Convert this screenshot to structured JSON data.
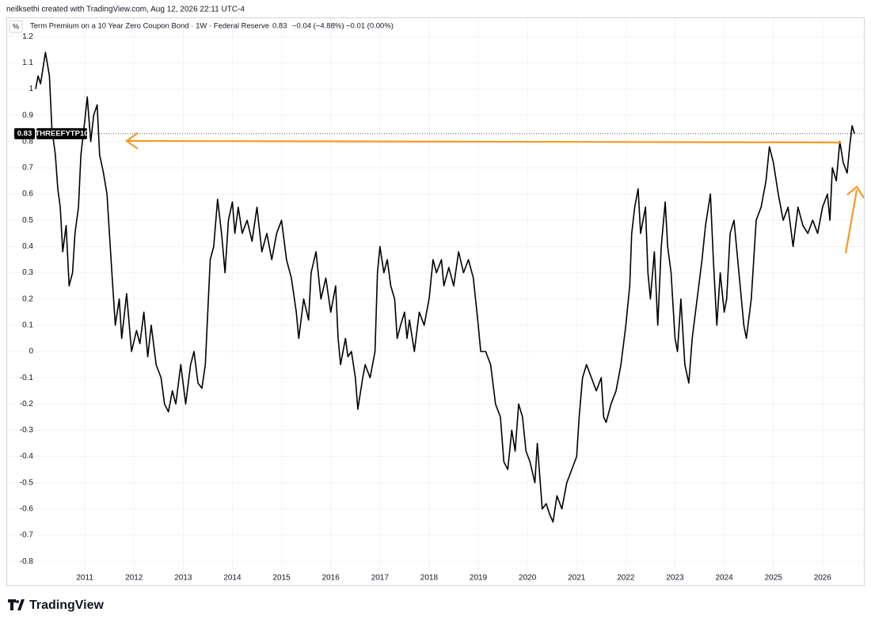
{
  "header": "neilksethi created with TradingView.com, Aug 12, 2026 22:11 UTC-4",
  "logo": "TradingView",
  "chart_data": {
    "type": "line",
    "unit_label": "%",
    "legend": {
      "title": "Term Premium on a 10 Year Zero Coupon Bond · 1W · Federal Reserve",
      "last": 0.83,
      "change": "−0.04 (−4.88%)",
      "change2": "−0.01 (0.00%)"
    },
    "xlim": [
      2009.42,
      2026.84
    ],
    "ylim": [
      -0.89,
      1.27
    ],
    "xticks": [
      2011,
      2012,
      2013,
      2014,
      2015,
      2016,
      2017,
      2018,
      2019,
      2020,
      2021,
      2022,
      2023,
      2024,
      2025,
      2026
    ],
    "yticks": [
      1.2,
      1.1,
      1,
      0.9,
      0.8,
      0.7,
      0.6,
      0.5,
      0.4,
      0.3,
      0.2,
      0.1,
      0,
      -0.1,
      -0.2,
      -0.3,
      -0.4,
      -0.5,
      -0.6,
      -0.7,
      -0.8
    ],
    "grid": true,
    "series": [
      {
        "name": "THREEFYTP10",
        "color": "#000000",
        "x": [
          2010.0,
          2010.05,
          2010.1,
          2010.15,
          2010.2,
          2010.28,
          2010.33,
          2010.4,
          2010.45,
          2010.5,
          2010.55,
          2010.62,
          2010.68,
          2010.75,
          2010.8,
          2010.87,
          2010.92,
          2011.0,
          2011.05,
          2011.12,
          2011.18,
          2011.25,
          2011.3,
          2011.38,
          2011.45,
          2011.55,
          2011.62,
          2011.7,
          2011.75,
          2011.85,
          2011.95,
          2012.05,
          2012.12,
          2012.2,
          2012.28,
          2012.35,
          2012.45,
          2012.55,
          2012.62,
          2012.7,
          2012.78,
          2012.85,
          2012.95,
          2013.05,
          2013.15,
          2013.22,
          2013.3,
          2013.38,
          2013.45,
          2013.5,
          2013.55,
          2013.62,
          2013.7,
          2013.78,
          2013.85,
          2013.92,
          2014.0,
          2014.05,
          2014.12,
          2014.2,
          2014.3,
          2014.4,
          2014.5,
          2014.6,
          2014.7,
          2014.8,
          2014.9,
          2015.0,
          2015.1,
          2015.2,
          2015.3,
          2015.35,
          2015.45,
          2015.55,
          2015.6,
          2015.7,
          2015.8,
          2015.9,
          2016.0,
          2016.1,
          2016.15,
          2016.2,
          2016.3,
          2016.35,
          2016.42,
          2016.5,
          2016.55,
          2016.65,
          2016.7,
          2016.8,
          2016.9,
          2016.95,
          2017.0,
          2017.08,
          2017.15,
          2017.22,
          2017.3,
          2017.35,
          2017.42,
          2017.5,
          2017.55,
          2017.6,
          2017.7,
          2017.8,
          2017.9,
          2018.0,
          2018.08,
          2018.15,
          2018.25,
          2018.3,
          2018.4,
          2018.5,
          2018.6,
          2018.7,
          2018.8,
          2018.9,
          2019.0,
          2019.05,
          2019.15,
          2019.25,
          2019.35,
          2019.45,
          2019.52,
          2019.6,
          2019.68,
          2019.75,
          2019.82,
          2019.9,
          2019.97,
          2020.05,
          2020.15,
          2020.2,
          2020.3,
          2020.38,
          2020.45,
          2020.52,
          2020.6,
          2020.7,
          2020.8,
          2020.9,
          2021.0,
          2021.05,
          2021.12,
          2021.2,
          2021.3,
          2021.4,
          2021.5,
          2021.55,
          2021.6,
          2021.7,
          2021.8,
          2021.9,
          2022.0,
          2022.08,
          2022.12,
          2022.18,
          2022.25,
          2022.3,
          2022.4,
          2022.45,
          2022.5,
          2022.58,
          2022.65,
          2022.72,
          2022.8,
          2022.85,
          2022.92,
          2023.0,
          2023.05,
          2023.12,
          2023.2,
          2023.28,
          2023.35,
          2023.45,
          2023.55,
          2023.62,
          2023.72,
          2023.78,
          2023.85,
          2023.92,
          2024.0,
          2024.05,
          2024.12,
          2024.2,
          2024.3,
          2024.4,
          2024.45,
          2024.55,
          2024.65,
          2024.75,
          2024.85,
          2024.92,
          2025.0,
          2025.1,
          2025.2,
          2025.3,
          2025.4,
          2025.5,
          2025.6,
          2025.7,
          2025.8,
          2025.9,
          2026.0,
          2026.1,
          2026.15,
          2026.2,
          2026.28,
          2026.35,
          2026.42,
          2026.5,
          2026.55,
          2026.6,
          2026.65
        ],
        "values": [
          1.0,
          1.05,
          1.02,
          1.08,
          1.14,
          1.05,
          0.85,
          0.75,
          0.62,
          0.55,
          0.38,
          0.48,
          0.25,
          0.3,
          0.45,
          0.55,
          0.75,
          0.88,
          0.97,
          0.8,
          0.9,
          0.94,
          0.75,
          0.68,
          0.6,
          0.3,
          0.1,
          0.2,
          0.05,
          0.22,
          0.0,
          0.08,
          0.03,
          0.15,
          -0.02,
          0.1,
          -0.05,
          -0.1,
          -0.2,
          -0.23,
          -0.15,
          -0.2,
          -0.05,
          -0.2,
          -0.05,
          0.0,
          -0.12,
          -0.14,
          -0.05,
          0.15,
          0.35,
          0.4,
          0.58,
          0.45,
          0.3,
          0.5,
          0.57,
          0.45,
          0.55,
          0.45,
          0.5,
          0.42,
          0.55,
          0.38,
          0.45,
          0.35,
          0.45,
          0.5,
          0.35,
          0.28,
          0.15,
          0.05,
          0.2,
          0.12,
          0.3,
          0.38,
          0.2,
          0.28,
          0.15,
          0.25,
          0.05,
          -0.05,
          0.05,
          -0.02,
          0.0,
          -0.1,
          -0.22,
          -0.1,
          -0.05,
          -0.1,
          0.0,
          0.3,
          0.4,
          0.3,
          0.35,
          0.25,
          0.2,
          0.05,
          0.1,
          0.15,
          0.05,
          0.12,
          0.0,
          0.15,
          0.1,
          0.2,
          0.35,
          0.3,
          0.35,
          0.25,
          0.32,
          0.25,
          0.38,
          0.3,
          0.35,
          0.28,
          0.1,
          0.0,
          0.0,
          -0.05,
          -0.2,
          -0.25,
          -0.42,
          -0.45,
          -0.3,
          -0.38,
          -0.2,
          -0.25,
          -0.38,
          -0.42,
          -0.5,
          -0.35,
          -0.6,
          -0.58,
          -0.62,
          -0.65,
          -0.55,
          -0.6,
          -0.5,
          -0.45,
          -0.4,
          -0.25,
          -0.1,
          -0.05,
          -0.1,
          -0.15,
          -0.1,
          -0.25,
          -0.27,
          -0.2,
          -0.15,
          -0.05,
          0.1,
          0.25,
          0.45,
          0.55,
          0.62,
          0.45,
          0.55,
          0.3,
          0.2,
          0.38,
          0.1,
          0.4,
          0.57,
          0.4,
          0.3,
          0.05,
          0.0,
          0.2,
          -0.05,
          -0.12,
          0.05,
          0.2,
          0.35,
          0.48,
          0.6,
          0.35,
          0.1,
          0.3,
          0.15,
          0.2,
          0.45,
          0.5,
          0.3,
          0.1,
          0.05,
          0.2,
          0.5,
          0.55,
          0.65,
          0.78,
          0.72,
          0.6,
          0.5,
          0.55,
          0.4,
          0.55,
          0.48,
          0.45,
          0.5,
          0.45,
          0.55,
          0.6,
          0.5,
          0.7,
          0.65,
          0.8,
          0.72,
          0.68,
          0.78,
          0.86,
          0.83
        ]
      }
    ]
  }
}
